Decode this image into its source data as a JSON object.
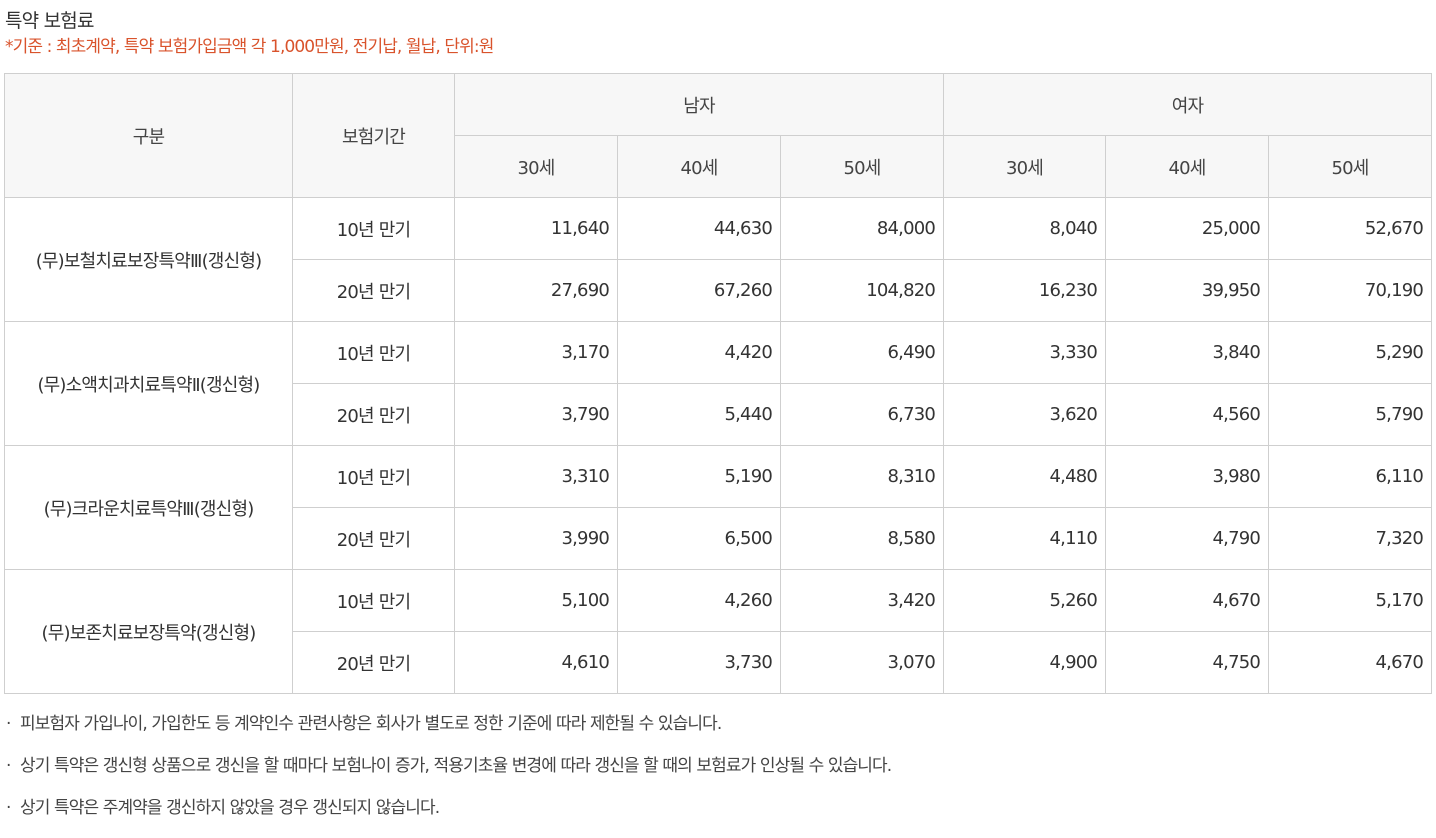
{
  "title": "특약 보험료",
  "subtitle": "*기준 : 최초계약, 특약 보험가입금액 각 1,000만원, 전기납, 월납, 단위:원",
  "table": {
    "header_category": "구분",
    "header_period": "보험기간",
    "header_male": "남자",
    "header_female": "여자",
    "ages": [
      "30세",
      "40세",
      "50세",
      "30세",
      "40세",
      "50세"
    ],
    "riders": [
      {
        "name": "(무)보철치료보장특약Ⅲ(갱신형)",
        "rows": [
          {
            "term": "10년 만기",
            "values": [
              "11,640",
              "44,630",
              "84,000",
              "8,040",
              "25,000",
              "52,670"
            ]
          },
          {
            "term": "20년 만기",
            "values": [
              "27,690",
              "67,260",
              "104,820",
              "16,230",
              "39,950",
              "70,190"
            ]
          }
        ]
      },
      {
        "name": "(무)소액치과치료특약Ⅱ(갱신형)",
        "rows": [
          {
            "term": "10년 만기",
            "values": [
              "3,170",
              "4,420",
              "6,490",
              "3,330",
              "3,840",
              "5,290"
            ]
          },
          {
            "term": "20년 만기",
            "values": [
              "3,790",
              "5,440",
              "6,730",
              "3,620",
              "4,560",
              "5,790"
            ]
          }
        ]
      },
      {
        "name": "(무)크라운치료특약Ⅲ(갱신형)",
        "rows": [
          {
            "term": "10년 만기",
            "values": [
              "3,310",
              "5,190",
              "8,310",
              "4,480",
              "3,980",
              "6,110"
            ]
          },
          {
            "term": "20년 만기",
            "values": [
              "3,990",
              "6,500",
              "8,580",
              "4,110",
              "4,790",
              "7,320"
            ]
          }
        ]
      },
      {
        "name": "(무)보존치료보장특약(갱신형)",
        "rows": [
          {
            "term": "10년 만기",
            "values": [
              "5,100",
              "4,260",
              "3,420",
              "5,260",
              "4,670",
              "5,170"
            ]
          },
          {
            "term": "20년 만기",
            "values": [
              "4,610",
              "3,730",
              "3,070",
              "4,900",
              "4,750",
              "4,670"
            ]
          }
        ]
      }
    ]
  },
  "notes": [
    "피보험자 가입나이, 가입한도 등 계약인수 관련사항은 회사가 별도로 정한 기준에 따라 제한될 수 있습니다.",
    "상기 특약은 갱신형 상품으로 갱신을 할 때마다 보험나이 증가, 적용기초율 변경에 따라 갱신을 할 때의 보험료가 인상될 수 있습니다.",
    "상기 특약은 주계약을 갱신하지 않았을 경우 갱신되지 않습니다."
  ],
  "bullet": "·"
}
